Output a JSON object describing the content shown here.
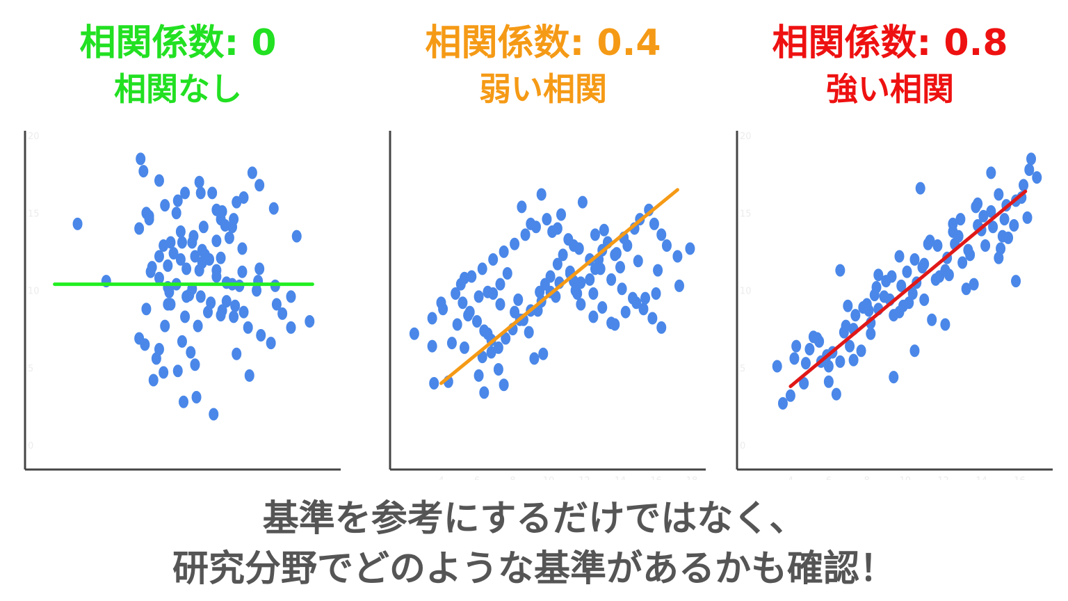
{
  "chart_data": [
    {
      "type": "scatter",
      "title": "相関係数: 0",
      "subtitle": "相関なし",
      "title_color": "#22e022",
      "line_color": "#22ee22",
      "dot_color": "#4a87e8",
      "correlation": 0,
      "xlim": [
        0,
        20
      ],
      "ylim": [
        0,
        20
      ],
      "x_ticks": [],
      "y_ticks": [
        0,
        5,
        10,
        15,
        20
      ],
      "trend_line": {
        "x": [
          1,
          19
        ],
        "y": [
          10.4,
          10.4
        ]
      },
      "series": [
        {
          "x": [
            2.6,
            4.6,
            7.9,
            8.6,
            10.9,
            10.0,
            12.1,
            14.6,
            13.7,
            9.6,
            10.8,
            8.1,
            9.9,
            8.7,
            9.1,
            9.3,
            7.6,
            6.9,
            7.4,
            9.1,
            10.7,
            12.3,
            12.6,
            9.5,
            10.1,
            11.1,
            12.0,
            11.4,
            12.3,
            12.6,
            13.2,
            13.7,
            8.9,
            9.8,
            10.2,
            10.8,
            11.3,
            11.8,
            7.7,
            8.3,
            9.5,
            10.6,
            11.2,
            11.9,
            12.7,
            13.5,
            14.5,
            15.4,
            16.1,
            17.5,
            18.8,
            16.9,
            16.5,
            15.1,
            14.1,
            15.2,
            16.4,
            17.5,
            17.9,
            13.5,
            14.2,
            16.3,
            15.3,
            14.8,
            7.0,
            7.2,
            8.3,
            9.6,
            11.2,
            12.7,
            13.4,
            14.1,
            15.3,
            8.9,
            10.4,
            11.1,
            11.3,
            12.3,
            13.9,
            13.0,
            11.7,
            10.2,
            9.8,
            7.8,
            8.3,
            9.0,
            7.4,
            8.9,
            10.1,
            11.0,
            12.6,
            13.6,
            14.2,
            8.6,
            9.9,
            11.5,
            12.3,
            13.0,
            13.4,
            7.6,
            8.7,
            10.6,
            12.9,
            10.5,
            8.3,
            7.3,
            6.9
          ],
          "y": [
            14.3,
            10.6,
            4.2,
            4.7,
            3.1,
            2.8,
            2.0,
            4.5,
            5.9,
            4.8,
            5.2,
            5.6,
            6.7,
            7.7,
            9.1,
            12.4,
            14.8,
            14.0,
            15.0,
            13.1,
            13.5,
            15.2,
            14.6,
            15.0,
            16.3,
            17.0,
            16.3,
            14.1,
            13.2,
            12.1,
            13.4,
            15.7,
            11.6,
            12.0,
            11.4,
            12.2,
            12.6,
            12.0,
            11.2,
            10.8,
            10.4,
            10.1,
            9.6,
            9.2,
            8.7,
            8.3,
            7.6,
            7.1,
            6.6,
            7.6,
            8.0,
            8.5,
            9.1,
            10.0,
            11.2,
            10.6,
            10.3,
            9.6,
            13.5,
            14.6,
            16.0,
            15.3,
            16.8,
            17.6,
            18.5,
            17.7,
            17.1,
            15.8,
            16.3,
            15.1,
            14.1,
            12.7,
            11.4,
            10.2,
            9.7,
            11.3,
            11.8,
            10.9,
            10.3,
            9.3,
            8.6,
            9.6,
            13.8,
            11.5,
            12.2,
            9.9,
            8.8,
            9.1,
            8.3,
            7.7,
            8.4,
            9.0,
            8.6,
            12.9,
            13.1,
            12.3,
            11.3,
            10.5,
            10.4,
            14.6,
            15.5,
            13.1,
            14.2,
            6.0,
            6.2,
            6.5,
            6.9
          ]
        }
      ]
    },
    {
      "type": "scatter",
      "title": "相関係数: 0.4",
      "subtitle": "弱い相関",
      "title_color": "#f59a16",
      "line_color": "#f59a16",
      "dot_color": "#4a87e8",
      "correlation": 0.4,
      "xlim": [
        2,
        18
      ],
      "ylim": [
        0,
        20
      ],
      "x_ticks": [
        4,
        6,
        8,
        10,
        12,
        14,
        16,
        18
      ],
      "y_ticks": [],
      "trend_line": {
        "x": [
          4,
          17.2
        ],
        "y": [
          4.0,
          16.5
        ]
      },
      "series": [
        {
          "x": [
            2.5,
            3.5,
            3.6,
            3.5,
            4.1,
            4.0,
            4.6,
            4.4,
            4.9,
            5.3,
            5.3,
            5.5,
            6.3,
            6.1,
            6.4,
            6.6,
            6.8,
            7.2,
            7.5,
            6.6,
            6.1,
            6.9,
            7.3,
            7.7,
            8.1,
            8.6,
            8.9,
            9.2,
            9.7,
            9.5,
            9.8,
            10.1,
            10.5,
            10.8,
            11.2,
            11.4,
            11.6,
            11.8,
            12.3,
            12.6,
            12.8,
            13.0,
            13.3,
            13.7,
            14.0,
            14.4,
            14.8,
            15.1,
            15.6,
            15.9,
            16.3,
            16.6,
            17.2,
            17.9,
            17.3,
            16.0,
            15.4,
            14.9,
            14.3,
            13.7,
            13.0,
            12.5,
            11.8,
            11.2,
            10.6,
            10.1,
            9.6,
            9.0,
            8.4,
            8.0,
            7.6,
            7.2,
            6.8,
            6.4,
            6.0,
            5.6,
            5.2,
            4.8,
            5.1,
            5.7,
            6.3,
            6.9,
            7.5,
            8.1,
            8.7,
            9.3,
            9.9,
            10.5,
            11.1,
            11.7,
            12.3,
            12.9,
            13.5,
            14.1,
            14.7,
            15.3,
            15.8,
            16.3,
            8.5,
            9.6,
            10.7,
            11.9,
            13.1,
            14.2,
            9.0,
            10.2,
            11.4,
            12.6,
            13.8,
            15.0,
            16.1,
            7.3,
            8.3,
            9.4,
            10.4,
            11.5,
            12.5,
            13.5
          ],
          "y": [
            7.2,
            6.4,
            4.0,
            8.2,
            8.8,
            9.2,
            6.6,
            4.1,
            7.8,
            6.3,
            10.8,
            8.4,
            5.7,
            4.5,
            3.4,
            7.2,
            6.0,
            4.9,
            3.9,
            9.9,
            9.6,
            9.8,
            10.4,
            11.1,
            8.6,
            8.1,
            7.3,
            5.6,
            5.9,
            9.9,
            10.4,
            10.9,
            11.7,
            12.3,
            11.2,
            10.6,
            9.8,
            9.1,
            10.7,
            11.4,
            12.0,
            12.6,
            13.1,
            12.3,
            11.5,
            12.9,
            14.0,
            14.6,
            15.2,
            14.3,
            13.6,
            12.9,
            12.2,
            12.7,
            10.3,
            9.8,
            9.5,
            9.2,
            8.6,
            7.8,
            8.9,
            9.8,
            10.5,
            11.1,
            10.5,
            9.9,
            9.3,
            8.7,
            8.1,
            7.5,
            6.9,
            6.3,
            6.8,
            7.4,
            8.0,
            8.6,
            9.2,
            9.8,
            10.4,
            10.9,
            11.4,
            12.0,
            12.5,
            13.0,
            13.6,
            14.1,
            14.6,
            14.0,
            13.3,
            12.7,
            12.0,
            11.4,
            10.7,
            10.1,
            9.5,
            8.8,
            8.2,
            7.6,
            15.4,
            16.2,
            14.9,
            15.7,
            13.9,
            13.4,
            14.3,
            13.8,
            12.9,
            13.6,
            12.4,
            11.9,
            11.3,
            9.1,
            9.4,
            8.7,
            9.6,
            10.0,
            8.3,
            7.9
          ]
        }
      ]
    },
    {
      "type": "scatter",
      "title": "相関係数: 0.8",
      "subtitle": "強い相関",
      "title_color": "#ee1111",
      "line_color": "#e01818",
      "dot_color": "#4a87e8",
      "correlation": 0.8,
      "xlim": [
        2,
        17
      ],
      "ylim": [
        0,
        20
      ],
      "x_ticks": [
        4,
        6,
        8,
        10,
        12,
        14,
        16
      ],
      "y_ticks": [
        0,
        5,
        10,
        15,
        20
      ],
      "trend_line": {
        "x": [
          4,
          16.3
        ],
        "y": [
          3.8,
          16.4
        ]
      },
      "series": [
        {
          "x": [
            3.3,
            3.6,
            4.0,
            4.3,
            4.7,
            5.2,
            5.6,
            6.0,
            6.4,
            6.9,
            7.3,
            7.7,
            8.1,
            8.5,
            8.9,
            9.3,
            9.7,
            10.1,
            10.5,
            10.9,
            11.3,
            11.7,
            12.1,
            12.5,
            12.9,
            13.3,
            13.7,
            14.1,
            14.5,
            14.9,
            15.3,
            15.7,
            16.1,
            16.5,
            16.9,
            5.0,
            5.5,
            6.2,
            6.8,
            7.4,
            8.0,
            8.6,
            9.2,
            9.8,
            10.4,
            11.0,
            11.6,
            12.2,
            12.8,
            13.4,
            14.0,
            14.6,
            15.2,
            15.8,
            4.2,
            4.8,
            5.9,
            7.0,
            8.2,
            9.4,
            10.6,
            11.8,
            13.0,
            14.2,
            15.4,
            16.6,
            6.6,
            7.8,
            9.0,
            10.2,
            11.4,
            12.6,
            13.8,
            15.0,
            16.2,
            7.1,
            8.4,
            9.7,
            11.0,
            12.3,
            13.6,
            14.9,
            6.0,
            7.3,
            8.6,
            9.9,
            11.2,
            12.5,
            13.8,
            15.1,
            16.4,
            5.4,
            10.8,
            12.1,
            10.5,
            9.4,
            8.2,
            6.6,
            13.2,
            14.5,
            15.8
          ],
          "y": [
            5.1,
            2.7,
            3.2,
            6.4,
            4.0,
            7.0,
            5.4,
            4.1,
            3.3,
            7.7,
            5.5,
            6.1,
            8.7,
            10.2,
            9.6,
            10.9,
            8.6,
            11.2,
            12.0,
            11.5,
            13.2,
            12.9,
            11.3,
            13.8,
            14.6,
            12.6,
            15.4,
            14.8,
            15.1,
            16.2,
            15.5,
            14.2,
            16.0,
            17.8,
            17.3,
            6.2,
            6.7,
            6.0,
            7.3,
            8.4,
            9.1,
            8.8,
            9.4,
            10.3,
            9.8,
            11.7,
            10.7,
            12.1,
            13.5,
            12.3,
            13.9,
            14.1,
            14.6,
            15.8,
            5.6,
            5.3,
            5.8,
            9.0,
            7.9,
            8.4,
            10.5,
            10.9,
            11.8,
            12.9,
            13.4,
            18.5,
            5.4,
            8.9,
            10.6,
            9.2,
            8.1,
            13.0,
            14.2,
            12.7,
            16.8,
            6.4,
            9.7,
            12.2,
            9.4,
            11.0,
            10.4,
            12.1,
            5.1,
            7.5,
            11.0,
            9.0,
            13.0,
            14.3,
            15.6,
            13.5,
            14.7,
            6.9,
            16.6,
            7.8,
            6.1,
            4.4,
            7.2,
            11.3,
            10.1,
            17.6,
            10.6
          ]
        }
      ]
    }
  ],
  "caption": {
    "line1": "基準を参考にするだけではなく、",
    "line2": "研究分野でどのような基準があるかも確認！"
  }
}
